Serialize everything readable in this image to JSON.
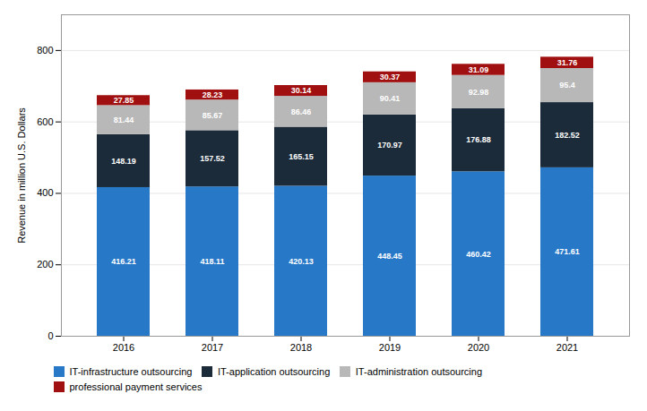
{
  "chart_data": {
    "type": "bar",
    "stacked": true,
    "categories": [
      "2016",
      "2017",
      "2018",
      "2019",
      "2020",
      "2021"
    ],
    "series": [
      {
        "name": "IT-infrastructure outsourcing",
        "color": "#2878C8",
        "values": [
          416.21,
          418.11,
          420.13,
          448.45,
          460.42,
          471.61
        ]
      },
      {
        "name": "IT-application outsourcing",
        "color": "#1C2B3A",
        "values": [
          148.19,
          157.52,
          165.15,
          170.97,
          176.88,
          182.52
        ]
      },
      {
        "name": "IT-administration outsourcing",
        "color": "#B8B8B8",
        "values": [
          81.44,
          85.67,
          86.46,
          90.41,
          92.98,
          95.4
        ]
      },
      {
        "name": "professional payment services",
        "color": "#A01010",
        "values": [
          27.85,
          28.23,
          30.14,
          30.37,
          31.09,
          31.76
        ]
      }
    ],
    "ylabel": "Revenue in million U.S. Dollars",
    "ylim": [
      0,
      900
    ],
    "yticks": [
      0,
      200,
      400,
      600,
      800
    ],
    "grid": true,
    "data_labels": true,
    "legend": "bottom"
  }
}
